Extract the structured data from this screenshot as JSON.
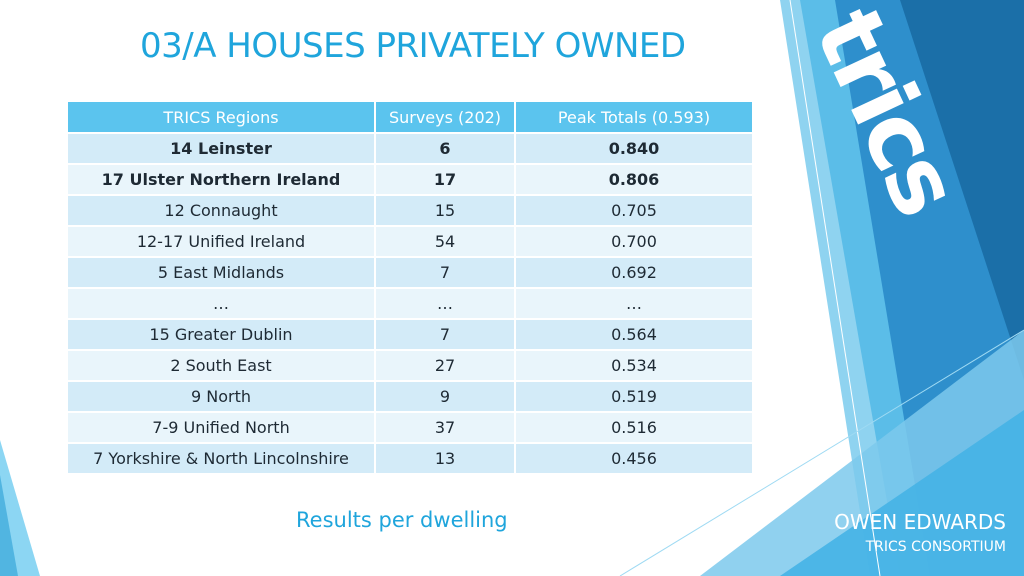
{
  "slide": {
    "title": "03/A HOUSES PRIVATELY OWNED",
    "caption": "Results per dwelling",
    "author": "OWEN EDWARDS",
    "organisation": "TRICS CONSORTIUM",
    "logo_text": "trics",
    "colors": {
      "accent": "#1fa5dc",
      "header": "#5bc4ee",
      "row_dark": "#d3ebf8",
      "row_light": "#e9f5fb"
    }
  },
  "table": {
    "headers": [
      "TRICS Regions",
      "Surveys (202)",
      "Peak Totals (0.593)"
    ],
    "rows": [
      {
        "region": "14 Leinster",
        "surveys": "6",
        "peak": "0.840",
        "bold": true
      },
      {
        "region": "17 Ulster Northern Ireland",
        "surveys": "17",
        "peak": "0.806",
        "bold": true
      },
      {
        "region": "12 Connaught",
        "surveys": "15",
        "peak": "0.705",
        "bold": false
      },
      {
        "region": "12-17 Unified Ireland",
        "surveys": "54",
        "peak": "0.700",
        "bold": false
      },
      {
        "region": "5 East Midlands",
        "surveys": "7",
        "peak": "0.692",
        "bold": false
      },
      {
        "region": "…",
        "surveys": "…",
        "peak": "…",
        "bold": false
      },
      {
        "region": "15 Greater Dublin",
        "surveys": "7",
        "peak": "0.564",
        "bold": false
      },
      {
        "region": "2 South East",
        "surveys": "27",
        "peak": "0.534",
        "bold": false
      },
      {
        "region": "9 North",
        "surveys": "9",
        "peak": "0.519",
        "bold": false
      },
      {
        "region": "7-9 Unified North",
        "surveys": "37",
        "peak": "0.516",
        "bold": false
      },
      {
        "region": "7 Yorkshire & North Lincolnshire",
        "surveys": "13",
        "peak": "0.456",
        "bold": false
      }
    ]
  }
}
